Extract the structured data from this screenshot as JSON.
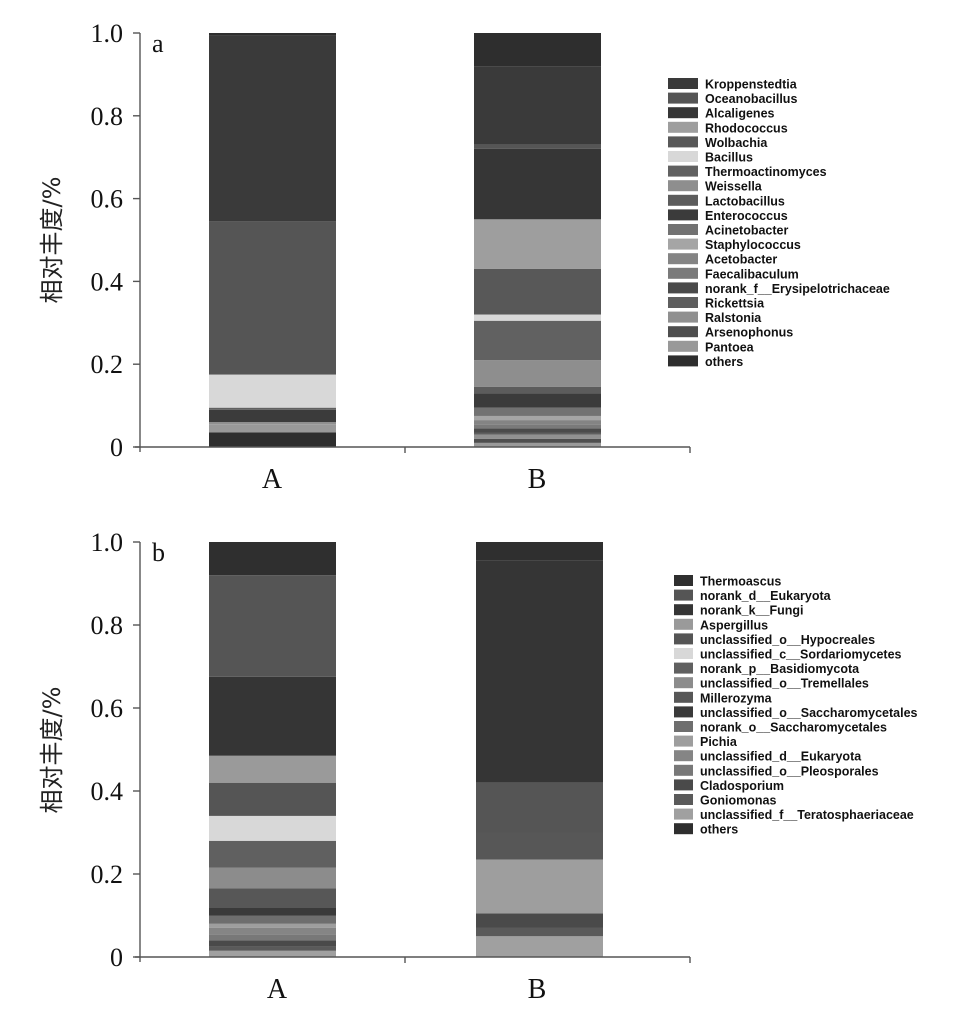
{
  "chart_data": [
    {
      "type": "bar",
      "stacked": true,
      "panel_label": "a",
      "categories": [
        "A",
        "B"
      ],
      "ylabel": "相对丰度/%",
      "xlabel": "",
      "ylim": [
        0,
        1.0
      ],
      "yticks": [
        "0",
        "0.2",
        "0.4",
        "0.6",
        "0.8",
        "1.0"
      ],
      "ytick_values": [
        0,
        0.2,
        0.4,
        0.6,
        0.8,
        1.0
      ],
      "legend_position": "right",
      "series": [
        {
          "name": "Kroppenstedtia",
          "color": "#3a3a3a",
          "values": [
            0.45,
            0.19
          ]
        },
        {
          "name": "Oceanobacillus",
          "color": "#555555",
          "values": [
            0.37,
            0.01
          ]
        },
        {
          "name": "Alcaligenes",
          "color": "#363636",
          "values": [
            0.0,
            0.17
          ]
        },
        {
          "name": "Rhodococcus",
          "color": "#9e9e9e",
          "values": [
            0.0,
            0.12
          ]
        },
        {
          "name": "Wolbachia",
          "color": "#585858",
          "values": [
            0.0,
            0.11
          ]
        },
        {
          "name": "Bacillus",
          "color": "#d8d8d8",
          "values": [
            0.08,
            0.015
          ]
        },
        {
          "name": "Thermoactinomyces",
          "color": "#616161",
          "values": [
            0.005,
            0.095
          ]
        },
        {
          "name": "Weissella",
          "color": "#8e8e8e",
          "values": [
            0.0,
            0.065
          ]
        },
        {
          "name": "Lactobacillus",
          "color": "#5c5c5c",
          "values": [
            0.0,
            0.015
          ]
        },
        {
          "name": "Enterococcus",
          "color": "#3b3b3b",
          "values": [
            0.03,
            0.035
          ]
        },
        {
          "name": "Acinetobacter",
          "color": "#727272",
          "values": [
            0.0,
            0.02
          ]
        },
        {
          "name": "Staphylococcus",
          "color": "#a5a5a5",
          "values": [
            0.0,
            0.01
          ]
        },
        {
          "name": "Acetobacter",
          "color": "#848484",
          "values": [
            0.0,
            0.01
          ]
        },
        {
          "name": "Faecalibaculum",
          "color": "#7a7a7a",
          "values": [
            0.0,
            0.01
          ]
        },
        {
          "name": "norank_f__Erysipelotrichaceae",
          "color": "#4a4a4a",
          "values": [
            0.0,
            0.01
          ]
        },
        {
          "name": "Rickettsia",
          "color": "#5e5e5e",
          "values": [
            0.0,
            0.005
          ]
        },
        {
          "name": "Ralstonia",
          "color": "#909090",
          "values": [
            0.005,
            0.01
          ]
        },
        {
          "name": "Arsenophonus",
          "color": "#4e4e4e",
          "values": [
            0.0,
            0.01
          ]
        },
        {
          "name": "Pantoea",
          "color": "#999999",
          "values": [
            0.02,
            0.01
          ]
        },
        {
          "name": "others",
          "color": "#2e2e2e",
          "values": [
            0.035,
            0.0
          ]
        }
      ]
    },
    {
      "type": "bar",
      "stacked": true,
      "panel_label": "b",
      "categories": [
        "A",
        "B"
      ],
      "ylabel": "相对丰度/%",
      "xlabel": "",
      "ylim": [
        0,
        1.0
      ],
      "yticks": [
        "0",
        "0.2",
        "0.4",
        "0.6",
        "0.8",
        "1.0"
      ],
      "ytick_values": [
        0,
        0.2,
        0.4,
        0.6,
        0.8,
        1.0
      ],
      "legend_position": "right",
      "series": [
        {
          "name": "Thermoascus",
          "color": "#2f2f2f",
          "values": [
            0.08,
            0.045
          ]
        },
        {
          "name": "norank_d__Eukaryota",
          "color": "#555555",
          "values": [
            0.245,
            0.0
          ]
        },
        {
          "name": "norank_k__Fungi",
          "color": "#353535",
          "values": [
            0.19,
            0.535
          ]
        },
        {
          "name": "Aspergillus",
          "color": "#9a9a9a",
          "values": [
            0.065,
            0.0
          ]
        },
        {
          "name": "unclassified_o__Hypocreales",
          "color": "#555555",
          "values": [
            0.08,
            0.12
          ]
        },
        {
          "name": "unclassified_c__Sordariomycetes",
          "color": "#d8d8d8",
          "values": [
            0.06,
            0.0
          ]
        },
        {
          "name": "norank_p__Basidiomycota",
          "color": "#606060",
          "values": [
            0.065,
            0.0
          ]
        },
        {
          "name": "unclassified_o__Tremellales",
          "color": "#8c8c8c",
          "values": [
            0.05,
            0.0
          ]
        },
        {
          "name": "Millerozyma",
          "color": "#575757",
          "values": [
            0.045,
            0.065
          ]
        },
        {
          "name": "unclassified_o__Saccharomycetales",
          "color": "#3a3a3a",
          "values": [
            0.02,
            0.0
          ]
        },
        {
          "name": "norank_o__Saccharomycetales",
          "color": "#6e6e6e",
          "values": [
            0.02,
            0.0
          ]
        },
        {
          "name": "Pichia",
          "color": "#9e9e9e",
          "values": [
            0.01,
            0.13
          ]
        },
        {
          "name": "unclassified_d__Eukaryota",
          "color": "#858585",
          "values": [
            0.015,
            0.0
          ]
        },
        {
          "name": "unclassified_o__Pleosporales",
          "color": "#787878",
          "values": [
            0.015,
            0.0
          ]
        },
        {
          "name": "Cladosporium",
          "color": "#4a4a4a",
          "values": [
            0.015,
            0.035
          ]
        },
        {
          "name": "Goniomonas",
          "color": "#5a5a5a",
          "values": [
            0.01,
            0.02
          ]
        },
        {
          "name": "unclassified_f__Teratosphaeriaceae",
          "color": "#a0a0a0",
          "values": [
            0.015,
            0.05
          ]
        },
        {
          "name": "others",
          "color": "#2e2e2e",
          "values": [
            0.0,
            0.0
          ]
        }
      ]
    }
  ]
}
